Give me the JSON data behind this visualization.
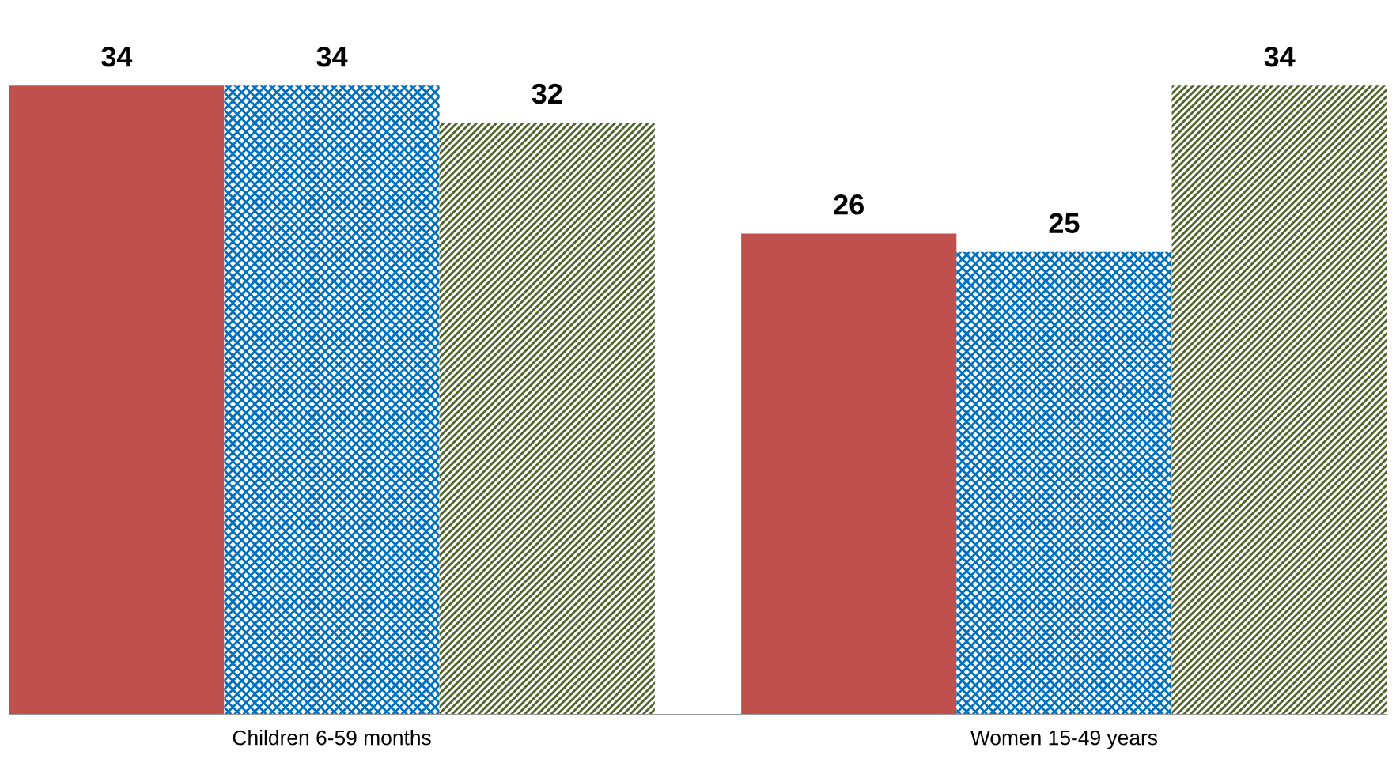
{
  "chart_data": {
    "type": "bar",
    "categories": [
      "Children 6-59 months",
      "Women 15-49 years"
    ],
    "series": [
      {
        "color": "#c0504d",
        "values": [
          34,
          26
        ]
      },
      {
        "color": "#0070c0",
        "values": [
          34,
          25
        ]
      },
      {
        "color": "#4f6228",
        "values": [
          32,
          34
        ]
      }
    ],
    "data_labels": true,
    "grid": false,
    "legend": false
  }
}
